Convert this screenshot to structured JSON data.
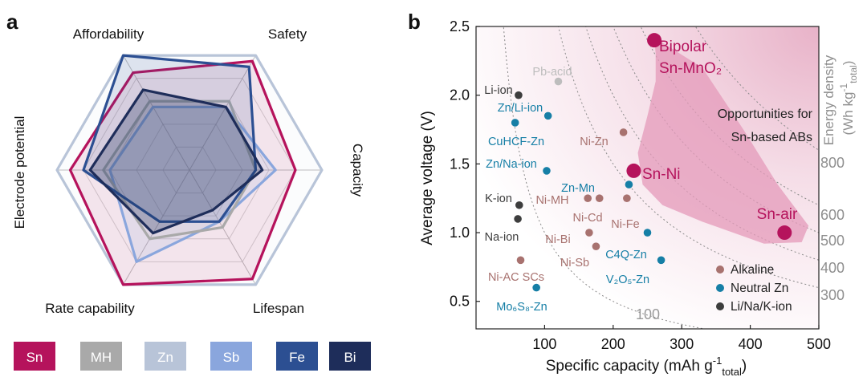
{
  "chart_data": [
    {
      "type": "radar",
      "panel_label": "a",
      "axes": [
        "Affordability",
        "Safety",
        "Capacity",
        "Lifespan",
        "Rate capability",
        "Electrode potential"
      ],
      "rmax": 1.0,
      "series": [
        {
          "name": "Sn",
          "color": "#b5135c",
          "values": [
            0.85,
            0.95,
            0.8,
            0.95,
            1.0,
            0.9
          ]
        },
        {
          "name": "MH",
          "color": "#a9a9a9",
          "values": [
            0.6,
            0.6,
            0.5,
            0.5,
            0.6,
            0.65
          ]
        },
        {
          "name": "Zn",
          "color": "#b8c4d8",
          "values": [
            1.0,
            1.0,
            1.0,
            1.0,
            1.0,
            1.0
          ]
        },
        {
          "name": "Sb",
          "color": "#8aa6dd",
          "values": [
            0.55,
            0.55,
            0.65,
            0.45,
            0.8,
            0.6
          ]
        },
        {
          "name": "Fe",
          "color": "#2c4f92",
          "values": [
            1.0,
            0.9,
            0.5,
            0.45,
            0.45,
            0.8
          ]
        },
        {
          "name": "Bi",
          "color": "#1e2d5a",
          "values": [
            0.7,
            0.55,
            0.55,
            0.35,
            0.55,
            0.75
          ]
        }
      ]
    },
    {
      "type": "scatter",
      "panel_label": "b",
      "xlabel": "Specific capacity (mAh g",
      "xlabel_sup": "-1",
      "xlabel_sub": "total",
      "xlabel_end": ")",
      "ylabel": "Average voltage (V)",
      "xlim": [
        0,
        500
      ],
      "ylim": [
        0.3,
        2.5
      ],
      "xticks": [
        100,
        200,
        300,
        400,
        500
      ],
      "yticks": [
        0.5,
        1.0,
        1.5,
        2.0,
        2.5
      ],
      "ytick_labels": [
        "0.5",
        "1.0",
        "1.5",
        "2.0",
        "2.5"
      ],
      "energy_density_label": "Energy density",
      "energy_density_unit": "(Wh kg",
      "energy_density_sup": "-1",
      "energy_density_sub": "total",
      "energy_density_unit_end": ")",
      "energy_density_lines": [
        100,
        300,
        400,
        500,
        600,
        800
      ],
      "energy_density_labels": [
        "300",
        "400",
        "500",
        "600",
        "800"
      ],
      "contour_bottom_label": "100",
      "opportunity_text": [
        "Opportunities for",
        "Sn-based ABs"
      ],
      "legend": [
        {
          "name": "Alkaline",
          "color": "#a8726f"
        },
        {
          "name": "Neutral Zn",
          "color": "#167fa6"
        },
        {
          "name": "Li/Na/K-ion",
          "color": "#3d3d3d"
        }
      ],
      "points": [
        {
          "name": "Li-ion",
          "x": 62,
          "y": 2.0,
          "group": "Li/Na/K-ion"
        },
        {
          "name": "K-ion",
          "x": 63,
          "y": 1.2,
          "group": "Li/Na/K-ion"
        },
        {
          "name": "Na-ion",
          "x": 61,
          "y": 1.1,
          "group": "Li/Na/K-ion"
        },
        {
          "name": "Pb-acid",
          "x": 120,
          "y": 2.1,
          "group": "Other"
        },
        {
          "name": "Zn/Li-ion",
          "x": 105,
          "y": 1.85,
          "group": "Neutral Zn"
        },
        {
          "name": "CuHCF-Zn",
          "x": 57,
          "y": 1.8,
          "group": "Neutral Zn"
        },
        {
          "name": "Zn/Na-ion",
          "x": 103,
          "y": 1.45,
          "group": "Neutral Zn"
        },
        {
          "name": "Zn-Mn",
          "x": 223,
          "y": 1.35,
          "group": "Neutral Zn"
        },
        {
          "name": "C4Q-Zn",
          "x": 250,
          "y": 1.0,
          "group": "Neutral Zn"
        },
        {
          "name": "V2O5-Zn",
          "x": 270,
          "y": 0.8,
          "group": "Neutral Zn"
        },
        {
          "name": "Mo6S8-Zn",
          "x": 88,
          "y": 0.6,
          "group": "Neutral Zn"
        },
        {
          "name": "Ni-Zn",
          "x": 215,
          "y": 1.73,
          "group": "Alkaline"
        },
        {
          "name": "Ni-MH",
          "x": 163,
          "y": 1.25,
          "group": "Alkaline"
        },
        {
          "name": "Ni-Cd",
          "x": 180,
          "y": 1.25,
          "group": "Alkaline"
        },
        {
          "name": "Ni-Fe",
          "x": 220,
          "y": 1.25,
          "group": "Alkaline"
        },
        {
          "name": "Ni-Bi",
          "x": 165,
          "y": 1.0,
          "group": "Alkaline"
        },
        {
          "name": "Ni-Sb",
          "x": 175,
          "y": 0.9,
          "group": "Alkaline"
        },
        {
          "name": "Ni-AC SCs",
          "x": 65,
          "y": 0.8,
          "group": "Alkaline"
        },
        {
          "name": "Sn-Ni",
          "x": 230,
          "y": 1.45,
          "group": "Sn"
        },
        {
          "name": "Sn-air",
          "x": 450,
          "y": 1.0,
          "group": "Sn"
        },
        {
          "name": "Bipolar Sn-MnO2",
          "x": 260,
          "y": 2.4,
          "group": "Sn"
        }
      ],
      "labels_display": {
        "Li-ion": "Li-ion",
        "K-ion": "K-ion",
        "Na-ion": "Na-ion",
        "Pb-acid": "Pb-acid",
        "Zn/Li-ion": "Zn/Li-ion",
        "CuHCF-Zn": "CuHCF-Zn",
        "Zn/Na-ion": "Zn/Na-ion",
        "Zn-Mn": "Zn-Mn",
        "C4Q-Zn": "C4Q-Zn",
        "V2O5-Zn": "V₂O₅-Zn",
        "Mo6S8-Zn": "Mo₆S₈-Zn",
        "Ni-Zn": "Ni-Zn",
        "Ni-MH": "Ni-MH",
        "Ni-Cd": "Ni-Cd",
        "Ni-Fe": "Ni-Fe",
        "Ni-Bi": "Ni-Bi",
        "Ni-Sb": "Ni-Sb",
        "Ni-AC SCs": "Ni-AC SCs",
        "Sn-Ni": "Sn-Ni",
        "Sn-air": "Sn-air",
        "Bipolar Sn-MnO2_line1": "Bipolar",
        "Bipolar Sn-MnO2_line2": "Sn-MnO₂"
      },
      "group_colors": {
        "Alkaline": "#a8726f",
        "Neutral Zn": "#167fa6",
        "Li/Na/K-ion": "#3d3d3d",
        "Other": "#bdbdbd",
        "Sn": "#b5135c"
      }
    }
  ]
}
